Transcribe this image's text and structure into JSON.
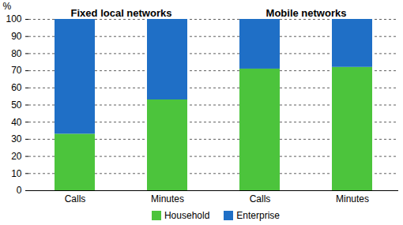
{
  "chart_data": {
    "type": "bar",
    "stacked": true,
    "ylabel": "%",
    "groups": [
      {
        "name": "Fixed local networks",
        "categories": [
          "Calls",
          "Minutes"
        ]
      },
      {
        "name": "Mobile networks",
        "categories": [
          "Calls",
          "Minutes"
        ]
      }
    ],
    "series": [
      {
        "name": "Household",
        "color": "#4cc43c",
        "values": [
          33,
          53,
          71,
          72
        ]
      },
      {
        "name": "Enterprise",
        "color": "#1f6fc6",
        "values": [
          67,
          47,
          29,
          28
        ]
      }
    ],
    "ylim": [
      0,
      100
    ],
    "yticks": [
      0,
      10,
      20,
      30,
      40,
      50,
      60,
      70,
      80,
      90,
      100
    ],
    "grid": true,
    "legend": "bottom"
  }
}
